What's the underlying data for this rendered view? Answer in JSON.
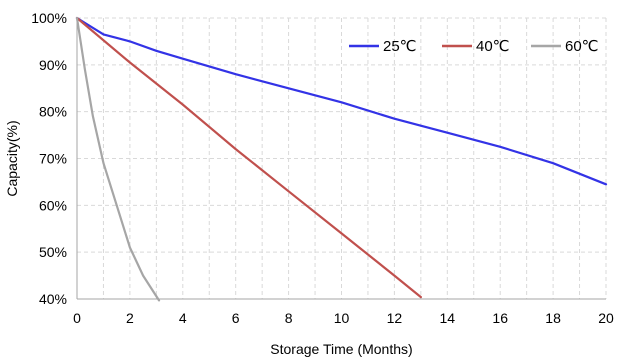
{
  "chart_data": {
    "type": "line",
    "xlabel": "Storage Time (Months)",
    "ylabel": "Capacity(%)",
    "xlim": [
      0,
      20
    ],
    "ylim": [
      40,
      100
    ],
    "x_ticks": [
      0,
      2,
      4,
      6,
      8,
      10,
      12,
      14,
      16,
      18,
      20
    ],
    "x_tick_labels": [
      "0",
      "2",
      "4",
      "6",
      "8",
      "10",
      "12",
      "14",
      "16",
      "18",
      "20"
    ],
    "y_ticks": [
      40,
      50,
      60,
      70,
      80,
      90,
      100
    ],
    "y_tick_labels": [
      "40%",
      "50%",
      "60%",
      "70%",
      "80%",
      "90%",
      "100%"
    ],
    "grid": "dashed",
    "legend_position": "top-right",
    "series": [
      {
        "name": "25℃",
        "color": "#3333e6",
        "points": [
          [
            0,
            100
          ],
          [
            1,
            96.5
          ],
          [
            2,
            95
          ],
          [
            3,
            93
          ],
          [
            4,
            91.3
          ],
          [
            6,
            88
          ],
          [
            8,
            85
          ],
          [
            10,
            82
          ],
          [
            12,
            78.5
          ],
          [
            14,
            75.5
          ],
          [
            16,
            72.5
          ],
          [
            18,
            69
          ],
          [
            20,
            64.5
          ]
        ]
      },
      {
        "name": "40℃",
        "color": "#c0504d",
        "points": [
          [
            0,
            100
          ],
          [
            2,
            90.5
          ],
          [
            4,
            81.5
          ],
          [
            6,
            72
          ],
          [
            8,
            63
          ],
          [
            10,
            54
          ],
          [
            12,
            45
          ],
          [
            13,
            40.4
          ]
        ]
      },
      {
        "name": "60℃",
        "color": "#a6a6a6",
        "points": [
          [
            0,
            100
          ],
          [
            0.3,
            89
          ],
          [
            0.6,
            79
          ],
          [
            1,
            69
          ],
          [
            1.5,
            60
          ],
          [
            2,
            51
          ],
          [
            2.5,
            45
          ],
          [
            3.1,
            39.7
          ]
        ]
      }
    ]
  }
}
